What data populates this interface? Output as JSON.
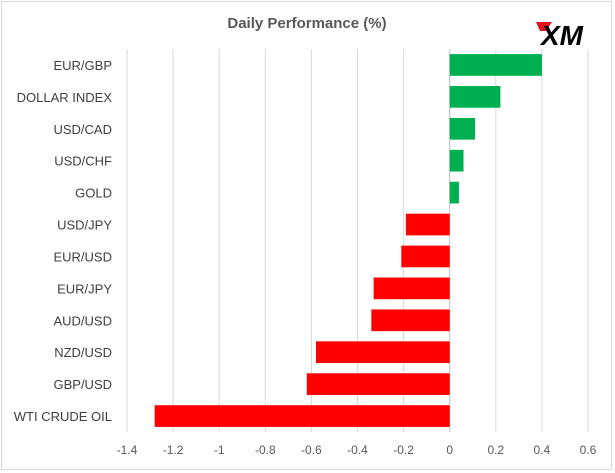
{
  "chart_data": {
    "type": "bar",
    "orientation": "horizontal",
    "title": "Daily Performance (%)",
    "xlabel": "",
    "ylabel": "",
    "categories": [
      "EUR/GBP",
      "DOLLAR INDEX",
      "USD/CAD",
      "USD/CHF",
      "GOLD",
      "USD/JPY",
      "EUR/USD",
      "EUR/JPY",
      "AUD/USD",
      "NZD/USD",
      "GBP/USD",
      "WTI CRUDE OIL"
    ],
    "values": [
      0.4,
      0.22,
      0.11,
      0.06,
      0.04,
      -0.19,
      -0.21,
      -0.33,
      -0.34,
      -0.58,
      -0.62,
      -1.28
    ],
    "xlim": [
      -1.4,
      0.6
    ],
    "ticks": [
      -1.4,
      -1.2,
      -1,
      -0.8,
      -0.6,
      -0.4,
      -0.2,
      0,
      0.2,
      0.4,
      0.6
    ],
    "tick_labels": [
      "-1.4",
      "-1.2",
      "-1",
      "-0.8",
      "-0.6",
      "-0.4",
      "-0.2",
      "0",
      "0.2",
      "0.4",
      "0.6"
    ],
    "grid": "vertical",
    "legend": "none",
    "colors": {
      "positive": "#00b050",
      "negative": "#ff0000",
      "gridline": "#d9d9d9",
      "axis": "#bfbfbf"
    }
  },
  "logo": {
    "text": "XM",
    "icon": "xm-logo",
    "accent": "#e1151a"
  }
}
